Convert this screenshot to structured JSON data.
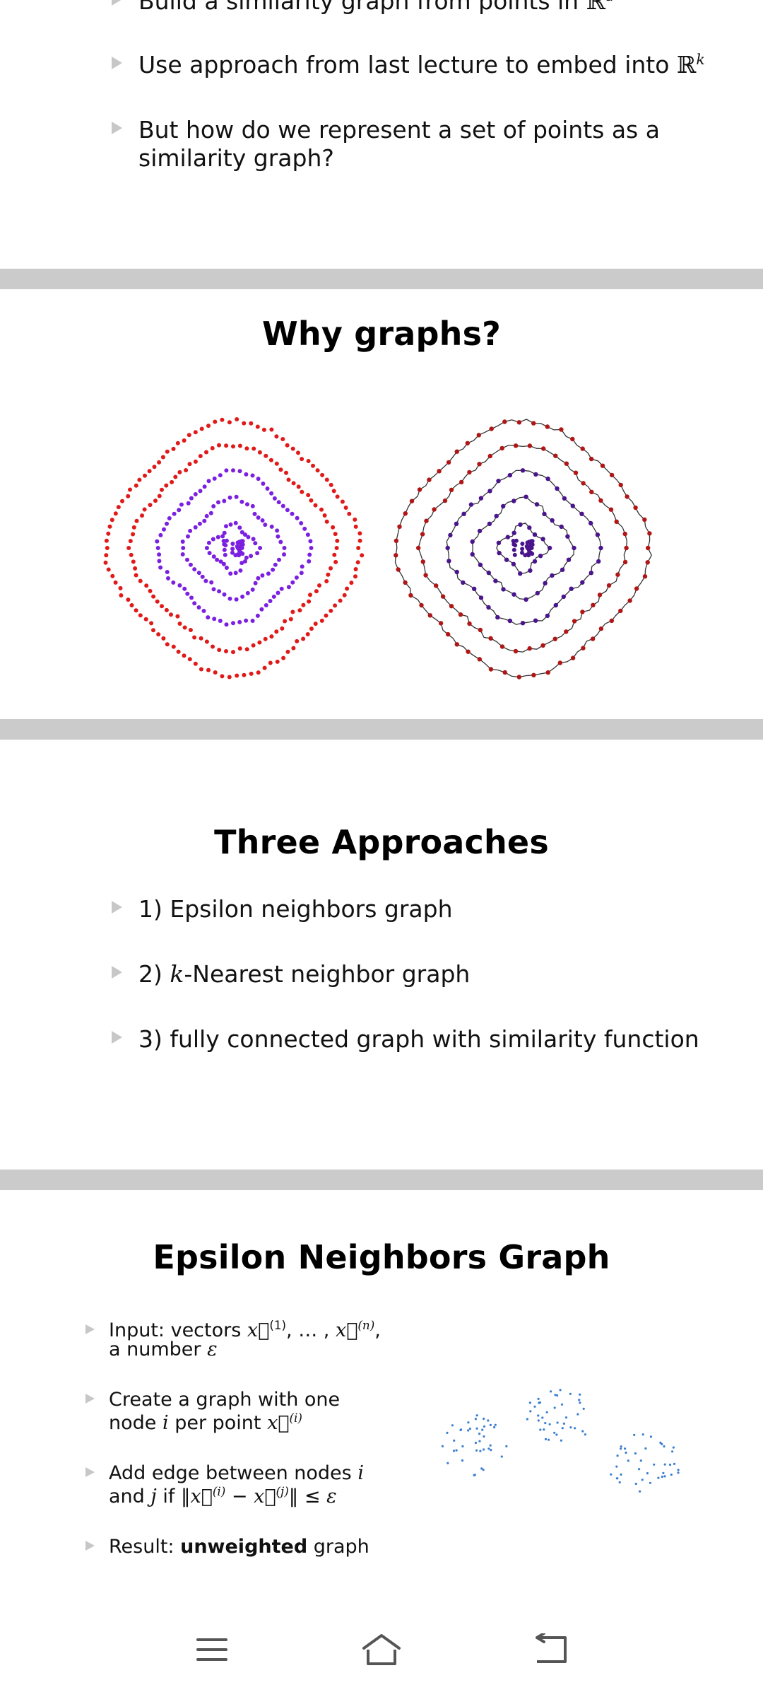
{
  "slide1": {
    "bullets": [
      {
        "text": "Build a similarity graph from points in ",
        "math": "ℝ",
        "sup": "d"
      },
      {
        "text": "Use approach from last lecture to embed into ",
        "math": "ℝ",
        "sup": "k"
      },
      {
        "line1": "But how do we represent a set of points as a",
        "line2": "similarity graph?"
      }
    ]
  },
  "slide2": {
    "title": "Why graphs?",
    "colors": {
      "outer": "#e01919",
      "inner": "#7b1fe0",
      "dark_inner": "#4a148c",
      "dark_outer": "#b01616",
      "edge": "#333333"
    }
  },
  "slide3": {
    "title": "Three Approaches",
    "bullets": [
      {
        "text": "1) Epsilon neighbors graph"
      },
      {
        "pre": "2) ",
        "math": "k",
        "post": "-Nearest neighbor graph"
      },
      {
        "text": "3) fully connected graph with similarity function"
      }
    ]
  },
  "slide4": {
    "title": "Epsilon Neighbors Graph",
    "bullets": [
      {
        "line1_pre": "Input: vectors ",
        "v1": "x⃗",
        "s1": "(1)",
        "mid": ", … , ",
        "v2": "x⃗",
        "s2": "(n)",
        "line1_post": ",",
        "line2_pre": "a number ",
        "eps": "ε"
      },
      {
        "line1": "Create a graph with one",
        "line2_pre": "node ",
        "i": "i",
        "line2_mid": " per point ",
        "v": "x⃗",
        "s": "(i)"
      },
      {
        "line1_pre": "Add edge between nodes ",
        "i": "i",
        "line2_pre": "and ",
        "j": "j",
        "line2_mid": " if ‖",
        "v1": "x⃗",
        "s1": "(i)",
        "minus": " − ",
        "v2": "x⃗",
        "s2": "(j)",
        "line2_post": "‖ ≤ ",
        "eps": "ε"
      },
      {
        "pre": "Result: ",
        "bold": "unweighted",
        "post": " graph"
      }
    ],
    "scatter_color": "#3b7fd1"
  },
  "navbar": {
    "icons": [
      "menu-icon",
      "home-icon",
      "back-icon"
    ],
    "color": "#555555"
  }
}
